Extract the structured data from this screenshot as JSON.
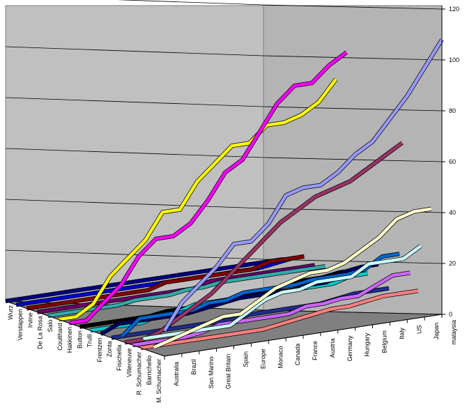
{
  "chart_data": {
    "type": "line",
    "title": "",
    "xlabel": "",
    "ylabel": "",
    "ylim": [
      0,
      120
    ],
    "yticks": [
      0,
      20,
      40,
      60,
      80,
      100,
      120
    ],
    "grid": true,
    "legend": "none",
    "categories": [
      "Australia",
      "Brazil",
      "San Marino",
      "Great Britain",
      "Spain",
      "Europe",
      "Monaco",
      "Canada",
      "France",
      "Austria",
      "Germany",
      "Hungary",
      "Belgium",
      "Italy",
      "US",
      "Japan",
      "malaysia"
    ],
    "series_axis_labels": [
      "Wurz",
      "Verstappen",
      "Irvine",
      "De La Rosa",
      "Salo",
      "Coulthard",
      "Hakkinen",
      "Button",
      "Trulli",
      "Frentzen",
      "Zonta",
      "Fisichella",
      "Villeneuve",
      "R. Schumacher",
      "Barrichello",
      "M. Schumacher"
    ],
    "series": [
      {
        "name": "Wurz",
        "color": "#000080",
        "values": [
          0,
          0,
          0,
          0,
          0,
          0,
          0,
          0,
          0,
          0,
          0,
          0,
          0,
          0,
          0,
          0,
          0
        ]
      },
      {
        "name": "Verstappen",
        "color": "#0000cc",
        "values": [
          0,
          0,
          0,
          0,
          0,
          0,
          0,
          0,
          0,
          0,
          0,
          0,
          0,
          0,
          0,
          1,
          2
        ]
      },
      {
        "name": "Irvine",
        "color": "#800000",
        "values": [
          0,
          0,
          0,
          0,
          0,
          0,
          0,
          0,
          2,
          2,
          2,
          2,
          2,
          2,
          4,
          4,
          4
        ]
      },
      {
        "name": "De La Rosa",
        "color": "#660066",
        "values": [
          0,
          0,
          0,
          0,
          0,
          0,
          0,
          0,
          0,
          0,
          2,
          2,
          2,
          2,
          2,
          2,
          2
        ]
      },
      {
        "name": "Salo",
        "color": "#33aaaa",
        "values": [
          0,
          0,
          0,
          0,
          0,
          1,
          1,
          1,
          2,
          2,
          3,
          3,
          3,
          3,
          3,
          3,
          3
        ]
      },
      {
        "name": "Coulthard",
        "color": "#ffff00",
        "values": [
          0,
          0,
          4,
          14,
          20,
          26,
          36,
          36,
          46,
          52,
          58,
          58,
          64,
          64,
          66,
          70,
          78
        ]
      },
      {
        "name": "Hakkinen",
        "color": "#ff00ff",
        "values": [
          0,
          0,
          6,
          12,
          22,
          28,
          28,
          32,
          40,
          50,
          54,
          64,
          74,
          80,
          80,
          86,
          90
        ]
      },
      {
        "name": "Button",
        "color": "#000000",
        "values": [
          0,
          0,
          0,
          0,
          0,
          1,
          1,
          1,
          1,
          2,
          3,
          3,
          4,
          5,
          5,
          6,
          6
        ]
      },
      {
        "name": "Trulli",
        "color": "#00cccc",
        "values": [
          0,
          0,
          0,
          0,
          2,
          2,
          4,
          4,
          4,
          4,
          4,
          4,
          4,
          4,
          4,
          6,
          6
        ]
      },
      {
        "name": "Frentzen",
        "color": "#000060",
        "values": [
          0,
          3,
          3,
          3,
          3,
          3,
          4,
          5,
          6,
          6,
          6,
          6,
          7,
          7,
          10,
          11,
          11
        ]
      },
      {
        "name": "Zonta",
        "color": "#1e2d8c",
        "values": [
          0,
          0,
          0,
          0,
          0,
          0,
          0,
          0,
          1,
          1,
          1,
          1,
          1,
          2,
          3,
          3,
          3
        ]
      },
      {
        "name": "Fisichella",
        "color": "#0066cc",
        "values": [
          2,
          8,
          8,
          8,
          8,
          10,
          10,
          12,
          12,
          12,
          12,
          13,
          13,
          13,
          14,
          18,
          18
        ]
      },
      {
        "name": "Villeneuve",
        "color": "#cc66ff",
        "values": [
          0,
          0,
          0,
          0,
          1,
          3,
          3,
          3,
          3,
          3,
          5,
          5,
          6,
          6,
          9,
          12,
          12
        ]
      },
      {
        "name": "R. Schumacher",
        "color": "#ccffff",
        "values": [
          4,
          4,
          4,
          4,
          4,
          4,
          8,
          12,
          14,
          14,
          16,
          16,
          16,
          20,
          20,
          20,
          24
        ]
      },
      {
        "name": "Barrichello",
        "color": "#ffffcc",
        "values": [
          2,
          4,
          6,
          8,
          10,
          10,
          14,
          18,
          20,
          22,
          22,
          24,
          28,
          32,
          38,
          40,
          40
        ]
      },
      {
        "name": "M. Schumacher",
        "color": "#9999ff",
        "values": [
          10,
          20,
          26,
          32,
          40,
          40,
          46,
          56,
          58,
          58,
          62,
          68,
          72,
          80,
          88,
          98,
          108
        ]
      }
    ],
    "extra_series": [
      {
        "name": "",
        "color": "#993366",
        "values": [
          0,
          0,
          2,
          6,
          10,
          14,
          20,
          26,
          32,
          38,
          42,
          46,
          48,
          50,
          54,
          58,
          62
        ]
      },
      {
        "name": "",
        "color": "#ff8080",
        "values": [
          0,
          0,
          0,
          0,
          0,
          0,
          0,
          0,
          1,
          2,
          3,
          4,
          4,
          5,
          6,
          6,
          6
        ]
      }
    ]
  }
}
